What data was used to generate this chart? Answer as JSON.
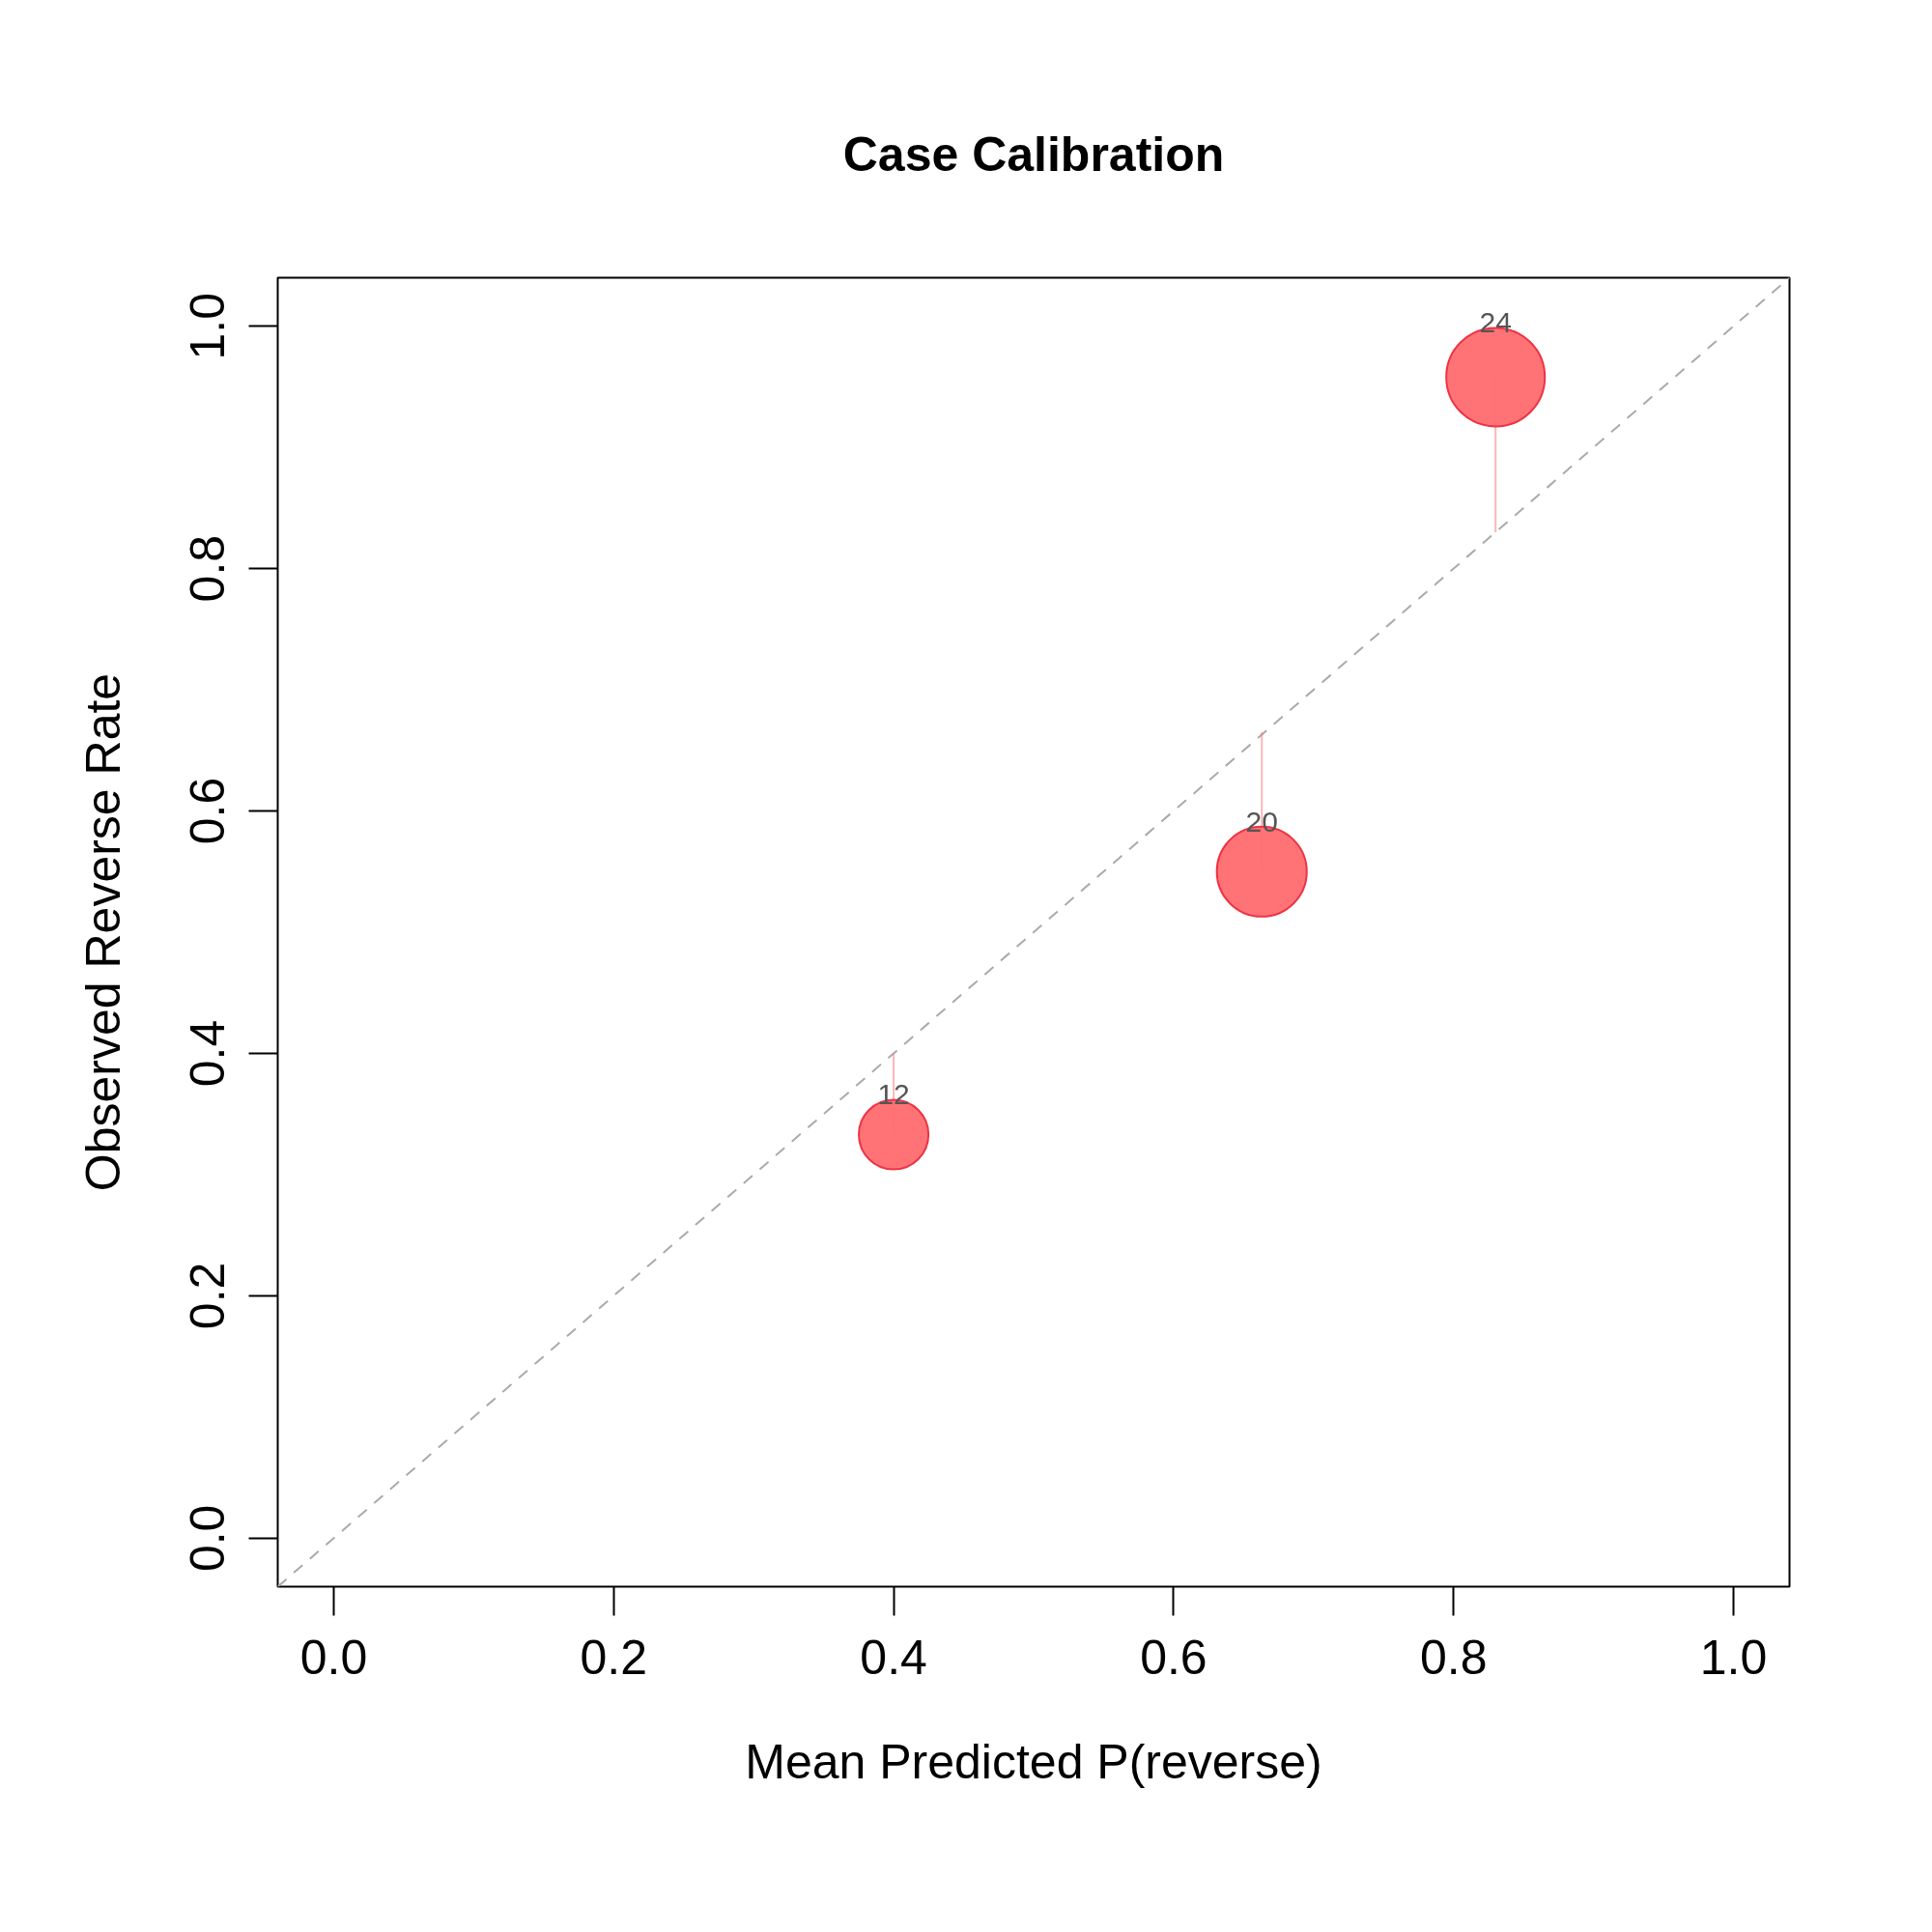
{
  "chart_data": {
    "type": "bubble",
    "title": "Case Calibration",
    "xlabel": "Mean Predicted P(reverse)",
    "ylabel": "Observed Reverse Rate",
    "xlim": [
      -0.04,
      1.04
    ],
    "ylim": [
      -0.04,
      1.04
    ],
    "xticks": [
      {
        "value": 0,
        "label": "0.0"
      },
      0.2,
      0.4,
      0.6,
      0.8,
      {
        "value": 1,
        "label": "1.0"
      }
    ],
    "yticks": [
      {
        "value": 0,
        "label": "0.0"
      },
      0.2,
      0.4,
      0.6,
      0.8,
      {
        "value": 1,
        "label": "1.0"
      }
    ],
    "grid": false,
    "series": [
      {
        "type": "line",
        "color": "#aaaaaa",
        "line_style": "dashed",
        "x": [
          -0.04,
          1.04
        ],
        "values": [
          -0.04,
          1.04
        ]
      },
      {
        "color": "#ff6b70",
        "x": [
          0.4,
          0.663,
          0.83
        ],
        "values": [
          0.333,
          0.55,
          0.958
        ],
        "sizes": [
          0.5,
          0.833,
          1
        ],
        "errors": [
          [
            0.333,
            0.4
          ],
          [
            0.55,
            0.665
          ],
          [
            0.83,
            0.958
          ]
        ]
      }
    ],
    "annotations": [
      {
        "text": "12",
        "x": 0.4,
        "y": 0.333
      },
      {
        "text": "20",
        "x": 0.663,
        "y": 0.55
      },
      {
        "text": "24",
        "x": 0.83,
        "y": 0.958
      }
    ]
  }
}
